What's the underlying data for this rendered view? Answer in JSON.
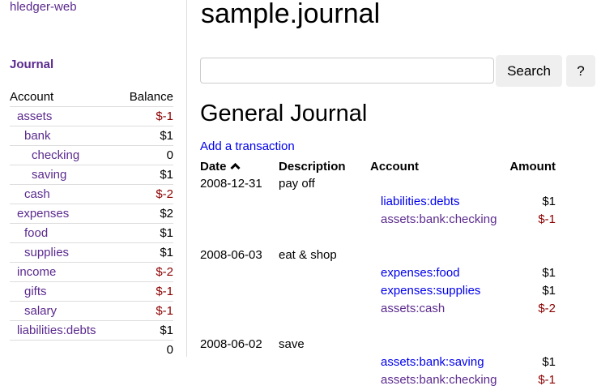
{
  "brand": "hledger-web",
  "sidebar": {
    "journal_link": "Journal",
    "headers": {
      "account": "Account",
      "balance": "Balance"
    },
    "accounts": [
      {
        "name": "assets",
        "balance": "$-1",
        "indent": 1,
        "neg": true
      },
      {
        "name": "bank",
        "balance": "$1",
        "indent": 2,
        "neg": false
      },
      {
        "name": "checking",
        "balance": "0",
        "indent": 3,
        "neg": false
      },
      {
        "name": "saving",
        "balance": "$1",
        "indent": 3,
        "neg": false
      },
      {
        "name": "cash",
        "balance": "$-2",
        "indent": 2,
        "neg": true
      },
      {
        "name": "expenses",
        "balance": "$2",
        "indent": 1,
        "neg": false
      },
      {
        "name": "food",
        "balance": "$1",
        "indent": 2,
        "neg": false
      },
      {
        "name": "supplies",
        "balance": "$1",
        "indent": 2,
        "neg": false
      },
      {
        "name": "income",
        "balance": "$-2",
        "indent": 1,
        "neg": true
      },
      {
        "name": "gifts",
        "balance": "$-1",
        "indent": 2,
        "neg": true
      },
      {
        "name": "salary",
        "balance": "$-1",
        "indent": 2,
        "neg": true
      },
      {
        "name": "liabilities:debts",
        "balance": "$1",
        "indent": 1,
        "neg": false
      }
    ],
    "total": "0"
  },
  "main": {
    "title": "sample.journal",
    "search": {
      "value": "",
      "button": "Search",
      "help": "?"
    },
    "heading": "General Journal",
    "add_link": "Add a transaction",
    "columns": {
      "date": "Date",
      "sort_icon": "chevron-up-icon",
      "description": "Description",
      "account": "Account",
      "amount": "Amount"
    },
    "transactions": [
      {
        "date": "2008-12-31",
        "description": "pay off",
        "postings": [
          {
            "account": "liabilities:debts",
            "amount": "$1",
            "visited": false
          },
          {
            "account": "assets:bank:checking",
            "amount": "$-1",
            "visited": true
          }
        ]
      },
      {
        "date": "2008-06-03",
        "description": "eat & shop",
        "postings": [
          {
            "account": "expenses:food",
            "amount": "$1",
            "visited": false
          },
          {
            "account": "expenses:supplies",
            "amount": "$1",
            "visited": false
          },
          {
            "account": "assets:cash",
            "amount": "$-2",
            "visited": true
          }
        ]
      },
      {
        "date": "2008-06-02",
        "description": "save",
        "postings": [
          {
            "account": "assets:bank:saving",
            "amount": "$1",
            "visited": false
          },
          {
            "account": "assets:bank:checking",
            "amount": "$-1",
            "visited": true
          }
        ]
      }
    ]
  },
  "colors": {
    "visited": "#5b2a8e",
    "link": "#0000ee",
    "negative": "#8b0000"
  }
}
